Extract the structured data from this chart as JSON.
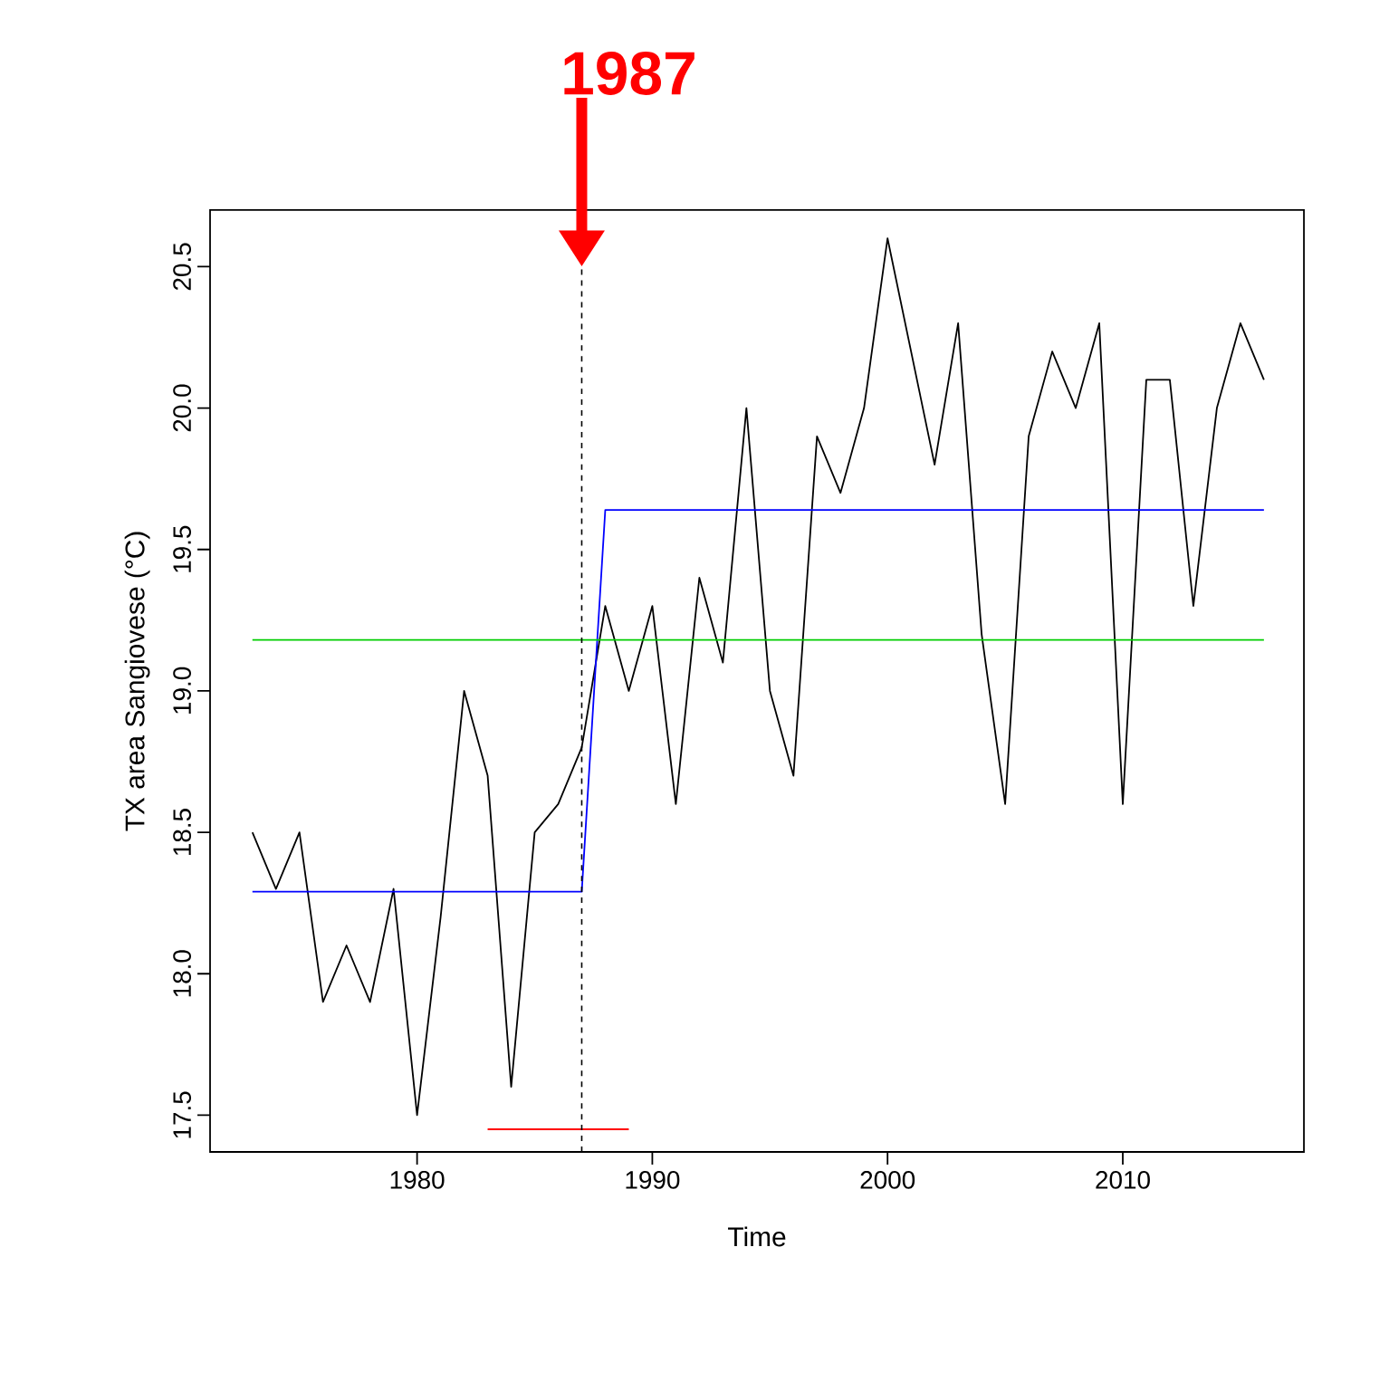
{
  "chart_data": {
    "type": "line",
    "xlabel": "Time",
    "ylabel": "TX area Sangiovese (°C)",
    "x": [
      1973,
      1974,
      1975,
      1976,
      1977,
      1978,
      1979,
      1980,
      1981,
      1982,
      1983,
      1984,
      1985,
      1986,
      1987,
      1988,
      1989,
      1990,
      1991,
      1992,
      1993,
      1994,
      1995,
      1996,
      1997,
      1998,
      1999,
      2000,
      2001,
      2002,
      2003,
      2004,
      2005,
      2006,
      2007,
      2008,
      2009,
      2010,
      2011,
      2012,
      2013,
      2014,
      2015,
      2016
    ],
    "series": [
      {
        "color": "#000000",
        "values": [
          18.5,
          18.3,
          18.5,
          17.9,
          18.1,
          17.9,
          18.3,
          17.5,
          18.2,
          19.0,
          18.7,
          17.6,
          18.5,
          18.6,
          18.8,
          19.3,
          19.0,
          19.3,
          18.6,
          19.4,
          19.1,
          20.0,
          19.0,
          18.7,
          19.9,
          19.7,
          20.0,
          20.6,
          20.2,
          19.8,
          20.3,
          19.2,
          18.6,
          19.9,
          20.2,
          20.0,
          20.3,
          18.6,
          20.1,
          20.1,
          19.3,
          20.0,
          20.3,
          20.1
        ]
      },
      {
        "color": "#0000ff",
        "x": [
          1973,
          1987,
          1988,
          2016
        ],
        "values": [
          18.29,
          18.29,
          19.64,
          19.64
        ]
      },
      {
        "color": "#00cd00",
        "x": [
          1973,
          2016
        ],
        "values": [
          19.18,
          19.18
        ]
      },
      {
        "color": "#ff0000",
        "x": [
          1983,
          1989
        ],
        "values": [
          17.45,
          17.45
        ]
      }
    ],
    "marker": "none",
    "xlim": [
      1971.2,
      2017.7
    ],
    "ylim": [
      17.37,
      20.7
    ],
    "xticks": [
      1980,
      1990,
      2000,
      2010
    ],
    "yticks": [
      17.5,
      {
        "value": 18,
        "label": "18.0"
      },
      18.5,
      {
        "value": 19,
        "label": "19.0"
      },
      19.5,
      {
        "value": 20,
        "label": "20.0"
      },
      20.5
    ],
    "ref_lines": [
      {
        "axis": "x",
        "value": 1987,
        "color": "#000000",
        "line_style": "dashed"
      }
    ],
    "annotations": [
      {
        "text": "1987",
        "x": 1987,
        "y": 20.5
      }
    ]
  }
}
